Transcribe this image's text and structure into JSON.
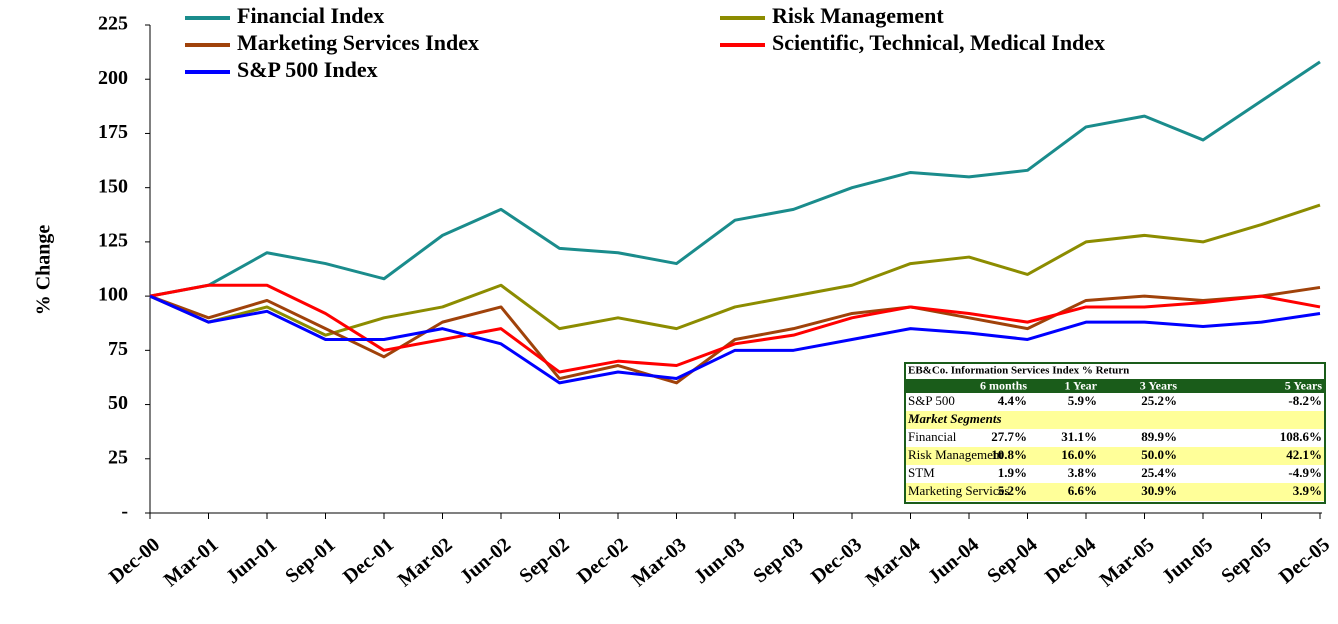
{
  "chart_data": {
    "type": "line",
    "ylabel": "% Change",
    "categories": [
      "Dec-00",
      "Mar-01",
      "Jun-01",
      "Sep-01",
      "Dec-01",
      "Mar-02",
      "Jun-02",
      "Sep-02",
      "Dec-02",
      "Mar-03",
      "Jun-03",
      "Sep-03",
      "Dec-03",
      "Mar-04",
      "Jun-04",
      "Sep-04",
      "Dec-04",
      "Mar-05",
      "Jun-05",
      "Sep-05",
      "Dec-05"
    ],
    "series": [
      {
        "name": "Financial Index",
        "color": "#1a8c8c",
        "values": [
          100,
          105,
          120,
          115,
          108,
          128,
          140,
          122,
          120,
          115,
          135,
          140,
          150,
          157,
          155,
          158,
          178,
          183,
          172,
          190,
          208
        ]
      },
      {
        "name": "Risk Management",
        "color": "#8c8c00",
        "values": [
          100,
          88,
          95,
          82,
          90,
          95,
          105,
          85,
          90,
          85,
          95,
          100,
          105,
          115,
          118,
          110,
          125,
          128,
          125,
          133,
          142
        ]
      },
      {
        "name": "Marketing Services Index",
        "color": "#a0420a",
        "values": [
          100,
          90,
          98,
          85,
          72,
          88,
          95,
          62,
          68,
          60,
          80,
          85,
          92,
          95,
          90,
          85,
          98,
          100,
          98,
          100,
          104
        ]
      },
      {
        "name": "Scientific, Technical, Medical Index",
        "color": "#ff0000",
        "values": [
          100,
          105,
          105,
          92,
          75,
          80,
          85,
          65,
          70,
          68,
          78,
          82,
          90,
          95,
          92,
          88,
          95,
          95,
          97,
          100,
          95
        ]
      },
      {
        "name": "S&P 500 Index",
        "color": "#0000ff",
        "values": [
          100,
          88,
          93,
          80,
          80,
          85,
          78,
          60,
          65,
          62,
          75,
          75,
          80,
          85,
          83,
          80,
          88,
          88,
          86,
          88,
          92
        ]
      }
    ],
    "ylim": [
      0,
      225
    ],
    "yticks": [
      {
        "value": 0,
        "label": "-"
      },
      25,
      50,
      75,
      100,
      125,
      150,
      175,
      200,
      225
    ],
    "table": {
      "title": "EB&Co. Information Services Index % Return",
      "columns": [
        "6 months",
        "1 Year",
        "3 Years",
        "5 Years"
      ],
      "rows": [
        [
          "S&P 500",
          "4.4%",
          "5.9%",
          "25.2%",
          "-8.2%"
        ],
        [
          "Market Segments"
        ],
        [
          "Financial",
          "27.7%",
          "31.1%",
          "89.9%",
          "108.6%"
        ],
        [
          "Risk Management",
          "10.8%",
          "16.0%",
          "50.0%",
          "42.1%"
        ],
        [
          "STM",
          "1.9%",
          "3.8%",
          "25.4%",
          "-4.9%"
        ],
        [
          "Marketing Services",
          "5.2%",
          "6.6%",
          "30.9%",
          "3.9%"
        ]
      ]
    }
  }
}
